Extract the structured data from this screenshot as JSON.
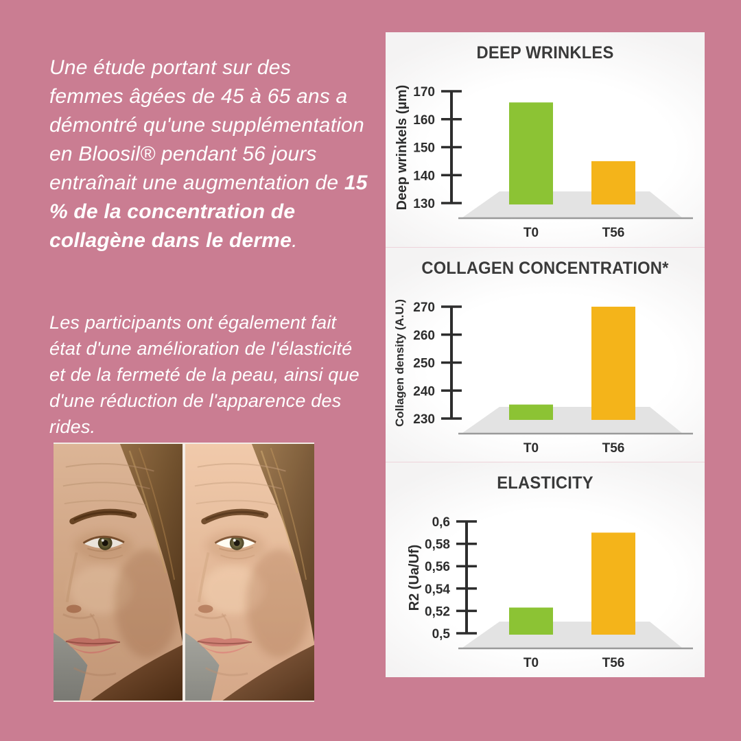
{
  "colors": {
    "background": "#ca7d92",
    "panel": "#ffffff",
    "bar_t0_green": "#8cc334",
    "bar_t56_yellow": "#f4b41a",
    "chart_text": "#2d2d2d",
    "platform_gray": "#e3e3e3",
    "divider_pink": "#eed3da",
    "intro_text": "#ffffff"
  },
  "intro": {
    "p1_regular": "Une étude portant sur des femmes âgées de 45 à 65 ans a démontré qu'une supplémentation en Bloosil® pendant 56 jours entraînait une augmentation de ",
    "p1_bold": "15 % de la concentration de collagène dans le derme",
    "p1_end": ".",
    "p2": "Les participants ont également fait état d'une amélioration de l'élasticité et de la fermeté de la peau, ainsi que d'une réduction de l'apparence des rides."
  },
  "photo": {
    "description": "before-after-face-photo",
    "left_half": "before",
    "right_half": "after"
  },
  "chart_data": [
    {
      "type": "bar",
      "title": "DEEP WRINKLES",
      "ylabel": "Deep wrinkels (µm)",
      "xlabel": "",
      "categories": [
        "T0",
        "T56"
      ],
      "values": [
        166,
        145
      ],
      "ylim": [
        130,
        170
      ],
      "ytick_values": [
        170,
        160,
        150,
        140,
        130
      ],
      "yticks": [
        "170",
        "160",
        "150",
        "140",
        "130"
      ],
      "bar_colors": [
        "#8cc334",
        "#f4b41a"
      ],
      "grid": "off",
      "legend": "none"
    },
    {
      "type": "bar",
      "title": "COLLAGEN CONCENTRATION*",
      "ylabel": "Collagen density (A.U.)",
      "xlabel": "",
      "categories": [
        "T0",
        "T56"
      ],
      "values": [
        235,
        270
      ],
      "ylim": [
        230,
        270
      ],
      "ytick_values": [
        270,
        260,
        250,
        240,
        230
      ],
      "yticks": [
        "270",
        "260",
        "250",
        "240",
        "230"
      ],
      "bar_colors": [
        "#8cc334",
        "#f4b41a"
      ],
      "grid": "off",
      "legend": "none"
    },
    {
      "type": "bar",
      "title": "ELASTICITY",
      "ylabel": "R2 (Ua/Uf)",
      "xlabel": "",
      "categories": [
        "T0",
        "T56"
      ],
      "values": [
        0.523,
        0.59
      ],
      "ylim": [
        0.5,
        0.6
      ],
      "ytick_values": [
        0.6,
        0.58,
        0.56,
        0.54,
        0.52,
        0.5
      ],
      "yticks": [
        "0,6",
        "0,58",
        "0,56",
        "0,54",
        "0,52",
        "0,5"
      ],
      "bar_colors": [
        "#8cc334",
        "#f4b41a"
      ],
      "grid": "off",
      "legend": "none"
    }
  ]
}
